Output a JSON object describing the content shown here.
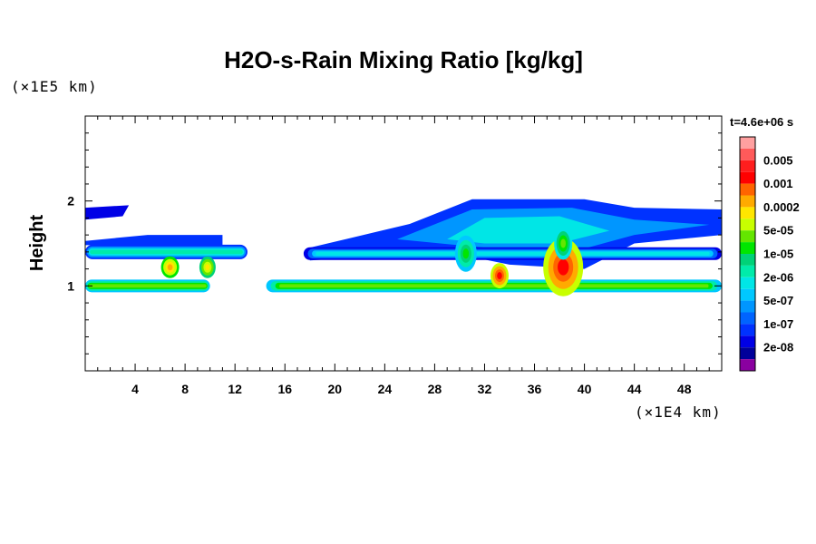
{
  "chart_data": {
    "type": "heatmap",
    "title": "H2O-s-Rain Mixing Ratio [kg/kg]",
    "time_label": "t=4.6e+06 s",
    "ylabel": "Height",
    "x_unit": "(×1E4 km)",
    "y_unit": "(×1E5 km)",
    "xlim": [
      0,
      51
    ],
    "ylim": [
      0,
      3
    ],
    "x_ticks": [
      4,
      8,
      12,
      16,
      20,
      24,
      28,
      32,
      36,
      40,
      44,
      48
    ],
    "y_ticks": [
      1,
      2
    ],
    "colorbar": {
      "levels": [
        {
          "color": "#ffa0a0",
          "label": ""
        },
        {
          "color": "#ff5a5a",
          "label": "0.005"
        },
        {
          "color": "#ff1e1e",
          "label": ""
        },
        {
          "color": "#ff0000",
          "label": "0.001"
        },
        {
          "color": "#ff6400",
          "label": ""
        },
        {
          "color": "#ffaa00",
          "label": "0.0002"
        },
        {
          "color": "#ffe600",
          "label": ""
        },
        {
          "color": "#c8ff00",
          "label": "5e-05"
        },
        {
          "color": "#64e600",
          "label": ""
        },
        {
          "color": "#00e600",
          "label": "1e-05"
        },
        {
          "color": "#00d278",
          "label": ""
        },
        {
          "color": "#00ebaa",
          "label": "2e-06"
        },
        {
          "color": "#00e6e6",
          "label": ""
        },
        {
          "color": "#00c8ff",
          "label": "5e-07"
        },
        {
          "color": "#0096ff",
          "label": ""
        },
        {
          "color": "#0064ff",
          "label": "1e-07"
        },
        {
          "color": "#0032ff",
          "label": ""
        },
        {
          "color": "#0000e6",
          "label": "2e-08"
        },
        {
          "color": "#00009a",
          "label": ""
        },
        {
          "color": "#8a00a0",
          "label": ""
        }
      ]
    },
    "layers": [
      {
        "name": "upper-thin-layer",
        "x": [
          0,
          3.5
        ],
        "y": 1.85,
        "level": 17
      },
      {
        "name": "mid-layer-left",
        "x": [
          0,
          13
        ],
        "y": 1.4,
        "level": 11
      },
      {
        "name": "mid-layer-right",
        "x": [
          17.5,
          51
        ],
        "y": 1.38,
        "level": 12
      },
      {
        "name": "anvil-top",
        "x": [
          18,
          51
        ],
        "y": 1.8,
        "level": 16
      },
      {
        "name": "low-layer",
        "x": [
          0,
          51
        ],
        "y": 1.0,
        "level": 8
      },
      {
        "name": "convective-core-1",
        "x": [
          33,
          33.5
        ],
        "y": 1.1,
        "level": 3
      },
      {
        "name": "convective-core-2",
        "x": [
          37,
          39.5
        ],
        "y": 1.2,
        "level": 3
      },
      {
        "name": "convective-core-left",
        "x": [
          6.5,
          10
        ],
        "y": 1.25,
        "level": 7
      }
    ]
  }
}
